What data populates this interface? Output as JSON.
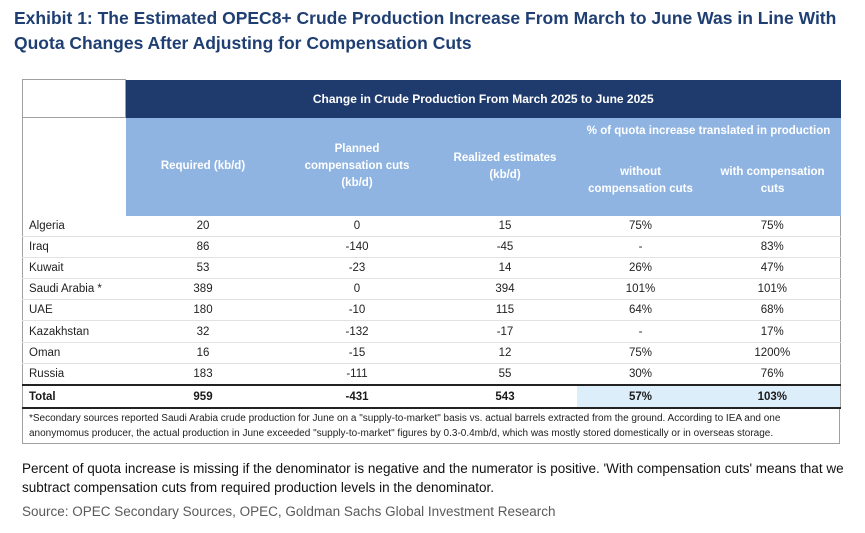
{
  "title": "Exhibit 1: The Estimated OPEC8+ Crude Production Increase From March to June Was in Line With Quota Changes After Adjusting for Compensation Cuts",
  "table": {
    "band_title": "Change in Crude Production From March 2025 to June 2025",
    "columns": {
      "required": "Required (kb/d)",
      "planned": "Planned compensation cuts (kb/d)",
      "realized": "Realized estimates (kb/d)",
      "pct_group": "% of quota increase translated in production",
      "without": "without compensation cuts",
      "with": "with compensation cuts"
    },
    "rows": [
      {
        "country": "Algeria",
        "required": "20",
        "planned": "0",
        "realized": "15",
        "without": "75%",
        "with": "75%"
      },
      {
        "country": "Iraq",
        "required": "86",
        "planned": "-140",
        "realized": "-45",
        "without": "-",
        "with": "83%"
      },
      {
        "country": "Kuwait",
        "required": "53",
        "planned": "-23",
        "realized": "14",
        "without": "26%",
        "with": "47%"
      },
      {
        "country": "Saudi Arabia *",
        "required": "389",
        "planned": "0",
        "realized": "394",
        "without": "101%",
        "with": "101%"
      },
      {
        "country": "UAE",
        "required": "180",
        "planned": "-10",
        "realized": "115",
        "without": "64%",
        "with": "68%"
      },
      {
        "country": "Kazakhstan",
        "required": "32",
        "planned": "-132",
        "realized": "-17",
        "without": "-",
        "with": "17%"
      },
      {
        "country": "Oman",
        "required": "16",
        "planned": "-15",
        "realized": "12",
        "without": "75%",
        "with": "1200%"
      },
      {
        "country": "Russia",
        "required": "183",
        "planned": "-111",
        "realized": "55",
        "without": "30%",
        "with": "76%"
      }
    ],
    "total": {
      "label": "Total",
      "required": "959",
      "planned": "-431",
      "realized": "543",
      "without": "57%",
      "with": "103%"
    },
    "footnote": "*Secondary sources reported Saudi Arabia crude production for June on a \"supply-to-market\" basis vs. actual barrels extracted from the ground. According to IEA and one anonymomus producer, the actual production in June exceeded \"supply-to-market\" figures by 0.3-0.4mb/d, which was mostly stored domestically or in overseas storage."
  },
  "note": "Percent of quota increase is missing if the denominator is negative and the numerator is positive. 'With compensation cuts' means that we subtract compensation cuts from required production levels in the denominator.",
  "source": "Source: OPEC Secondary Sources, OPEC, Goldman Sachs Global Investment Research"
}
